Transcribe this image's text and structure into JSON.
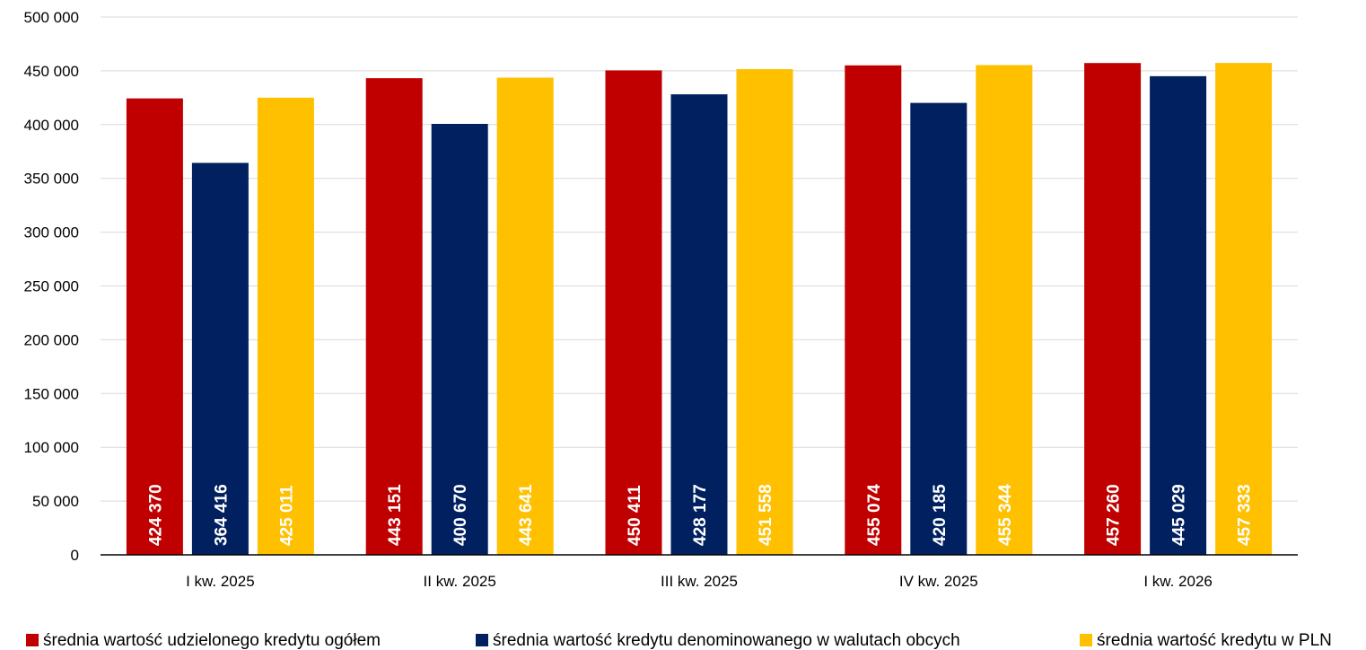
{
  "chart_data": {
    "type": "bar",
    "categories": [
      "I kw. 2025",
      "II kw. 2025",
      "III kw. 2025",
      "IV kw. 2025",
      "I kw. 2026"
    ],
    "series": [
      {
        "name": "średnia wartość udzielonego kredytu ogółem",
        "color": "#c00000",
        "values": [
          424370,
          443151,
          450411,
          455074,
          457260
        ],
        "labels": [
          "424 370",
          "443 151",
          "450 411",
          "455 074",
          "457 260"
        ]
      },
      {
        "name": "średnia wartość kredytu denominowanego w walutach obcych",
        "color": "#002060",
        "values": [
          364416,
          400670,
          428177,
          420185,
          445029
        ],
        "labels": [
          "364 416",
          "400 670",
          "428 177",
          "420 185",
          "445 029"
        ]
      },
      {
        "name": "średnia wartość kredytu w PLN",
        "color": "#ffc000",
        "values": [
          425011,
          443641,
          451558,
          455344,
          457333
        ],
        "labels": [
          "425 011",
          "443 641",
          "451 558",
          "455 344",
          "457 333"
        ]
      }
    ],
    "ylim": [
      0,
      500000
    ],
    "yticks": [
      0,
      50000,
      100000,
      150000,
      200000,
      250000,
      300000,
      350000,
      400000,
      450000,
      500000
    ],
    "ytick_labels": [
      "0",
      "50 000",
      "100 000",
      "150 000",
      "200 000",
      "250 000",
      "300 000",
      "350 000",
      "400 000",
      "450 000",
      "500 000"
    ],
    "grid": true,
    "legend_position": "bottom",
    "data_labels": "inside-base-vertical"
  }
}
